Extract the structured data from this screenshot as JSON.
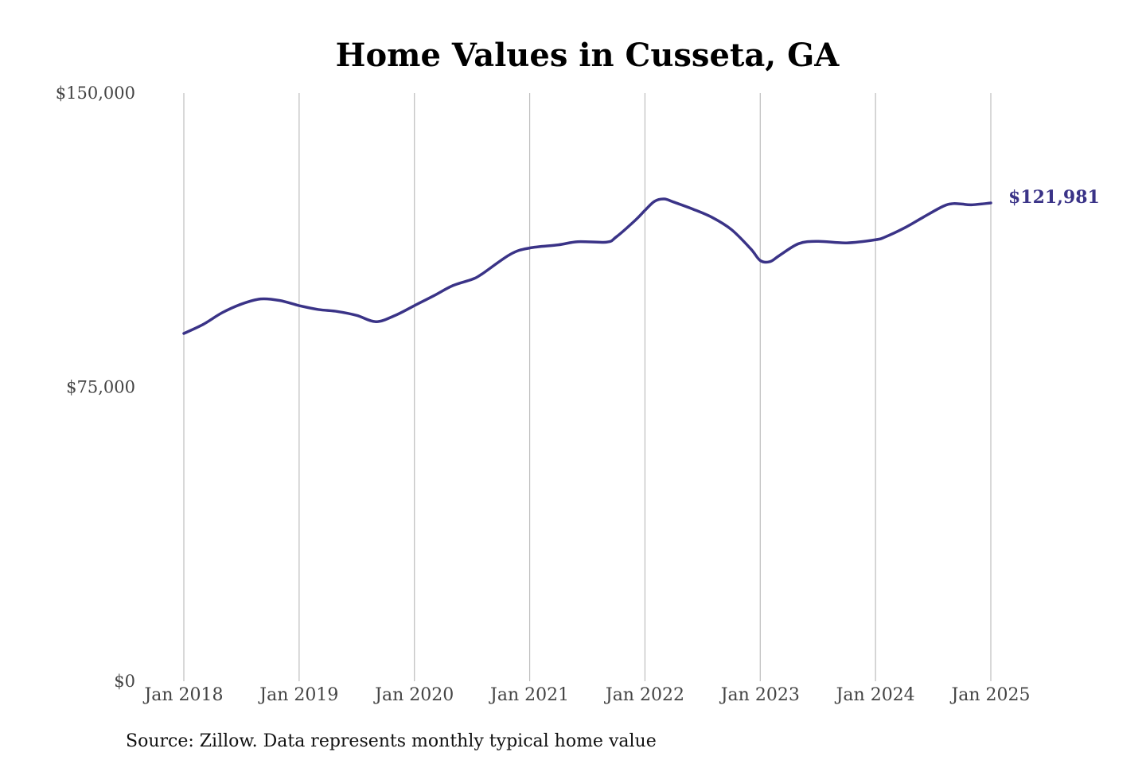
{
  "chart_data": {
    "type": "line",
    "title": "Home Values in Cusseta, GA",
    "source": "Source: Zillow. Data represents monthly typical home value",
    "end_label": "$121,981",
    "line_color": "#3a3387",
    "ylim": [
      0,
      150000
    ],
    "y_ticks": [
      {
        "value": 0,
        "label": "$0"
      },
      {
        "value": 75000,
        "label": "$75,000"
      },
      {
        "value": 150000,
        "label": "$150,000"
      }
    ],
    "xlim": [
      2018.0,
      2025.0
    ],
    "x_ticks": [
      {
        "value": 2018,
        "label": "Jan 2018"
      },
      {
        "value": 2019,
        "label": "Jan 2019"
      },
      {
        "value": 2020,
        "label": "Jan 2020"
      },
      {
        "value": 2021,
        "label": "Jan 2021"
      },
      {
        "value": 2022,
        "label": "Jan 2022"
      },
      {
        "value": 2023,
        "label": "Jan 2023"
      },
      {
        "value": 2024,
        "label": "Jan 2024"
      },
      {
        "value": 2025,
        "label": "Jan 2025"
      }
    ],
    "grid": "vertical",
    "series": [
      {
        "x": [
          2018.0,
          2018.167,
          2018.333,
          2018.5,
          2018.667,
          2018.833,
          2019.0,
          2019.167,
          2019.333,
          2019.5,
          2019.667,
          2019.833,
          2020.0,
          2020.167,
          2020.333,
          2020.5,
          2020.583,
          2020.833,
          2021.0,
          2021.25,
          2021.417,
          2021.667,
          2021.75,
          2021.917,
          2022.0,
          2022.083,
          2022.167,
          2022.25,
          2022.417,
          2022.583,
          2022.75,
          2022.917,
          2023.0,
          2023.083,
          2023.167,
          2023.333,
          2023.5,
          2023.75,
          2024.0,
          2024.083,
          2024.25,
          2024.417,
          2024.583,
          2024.667,
          2024.75,
          2024.833,
          2025.0
        ],
        "y": [
          88700,
          91000,
          94000,
          96200,
          97500,
          97100,
          95800,
          94800,
          94300,
          93300,
          91700,
          93300,
          95800,
          98300,
          100900,
          102500,
          103800,
          108900,
          110500,
          111300,
          112100,
          112000,
          113300,
          117600,
          120100,
          122400,
          123000,
          122200,
          120400,
          118300,
          115200,
          110300,
          107300,
          107000,
          108600,
          111600,
          112200,
          111800,
          112600,
          113300,
          115600,
          118400,
          121100,
          121800,
          121700,
          121500,
          121981
        ]
      }
    ]
  }
}
